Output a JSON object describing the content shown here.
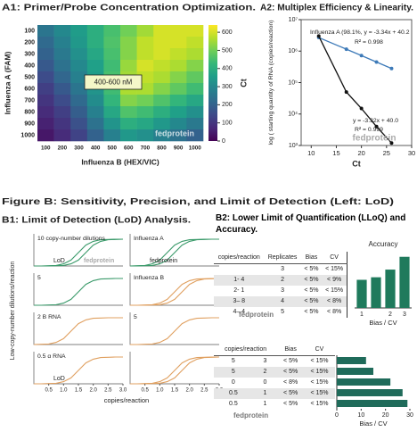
{
  "chart_data": [
    {
      "type": "heatmap",
      "title": "A1: Primer/Probe Concentration Optimization.",
      "x_label": "Influenza B (HEX/VIC)",
      "y_label": "Influenza A (FAM)",
      "categories": [
        "100",
        "200",
        "300",
        "400",
        "500",
        "600",
        "700",
        "800",
        "900",
        "1000"
      ],
      "y_categories": [
        "100",
        "200",
        "300",
        "400",
        "500",
        "600",
        "700",
        "800",
        "900",
        "1000"
      ],
      "values": [
        [
          250,
          300,
          350,
          400,
          450,
          500,
          550,
          600,
          600,
          600
        ],
        [
          220,
          280,
          340,
          400,
          460,
          520,
          580,
          600,
          600,
          580
        ],
        [
          200,
          260,
          320,
          380,
          450,
          520,
          580,
          600,
          580,
          560
        ],
        [
          180,
          240,
          300,
          360,
          440,
          540,
          600,
          580,
          560,
          520
        ],
        [
          150,
          210,
          280,
          350,
          450,
          550,
          580,
          560,
          520,
          480
        ],
        [
          120,
          180,
          250,
          330,
          440,
          560,
          560,
          520,
          480,
          440
        ],
        [
          100,
          150,
          220,
          310,
          420,
          520,
          500,
          460,
          420,
          380
        ],
        [
          80,
          120,
          190,
          280,
          380,
          460,
          440,
          400,
          360,
          320
        ],
        [
          60,
          100,
          160,
          240,
          330,
          400,
          380,
          340,
          300,
          260
        ],
        [
          40,
          80,
          130,
          200,
          280,
          340,
          320,
          280,
          240,
          200
        ]
      ],
      "colormap": "viridis",
      "colorbar_label": "Ct",
      "clim": [
        0,
        640
      ],
      "cticks": [
        0,
        100,
        200,
        300,
        400,
        500,
        600
      ],
      "annotation": "400-600 nM",
      "watermark": "fedprotein"
    },
    {
      "type": "line",
      "title": "A2: Multiplex Efficiency & Linearity.",
      "x_label": "Ct",
      "y_label": "log ( starting quantity of RNA (copies/reaction)",
      "log_y": true,
      "xlim": [
        8,
        30
      ],
      "xticks": [
        10,
        15,
        20,
        25,
        30
      ],
      "ylim": [
        1000,
        10000000
      ],
      "yticks": [
        {
          "value": 1000,
          "label": "10³"
        },
        {
          "value": 10000,
          "label": "10⁴"
        },
        {
          "value": 100000,
          "label": "10⁵"
        },
        {
          "value": 1000000,
          "label": "10⁶"
        },
        {
          "value": 10000000,
          "label": "10⁷"
        }
      ],
      "series": [
        {
          "color": "#3d7ab8",
          "x": [
            11.5,
            17,
            20,
            23,
            26
          ],
          "values": [
            2700000,
            1150000,
            720000,
            450000,
            280000
          ]
        },
        {
          "color": "#111111",
          "x": [
            11.5,
            17,
            20,
            23,
            26
          ],
          "values": [
            3000000,
            50000,
            15000,
            4000,
            1200
          ]
        }
      ],
      "annotations": [
        "Influenza A (98.1%, y = -3.34x + 40.2",
        "R² = 0.998",
        "y = -3.32x + 40.0",
        "R² = 0.999"
      ],
      "watermark": "fedprotein"
    },
    {
      "type": "multiples",
      "title": "B1: Limit of Detection (LoD) Analysis.",
      "x_label": "copies/reaction",
      "y_label": "Low-copy-number dilutions/reaction",
      "xlim": [
        0,
        3
      ],
      "ylim": [
        0,
        1.2
      ],
      "xticks": [
        0.5,
        {
          "value": 1,
          "label": "1.0"
        },
        1.5,
        {
          "value": 2,
          "label": "2.0"
        },
        2.5,
        {
          "value": 3,
          "label": "3.0"
        }
      ],
      "x": [
        0,
        0.25,
        0.5,
        0.75,
        1,
        1.25,
        1.5,
        1.75,
        2,
        2.25,
        2.5,
        2.75,
        3
      ],
      "panels": [
        {
          "label": "10 copy-number dilutions",
          "color": "#3a9a6a",
          "annotations": [
            "LoD",
            "fedprotein"
          ],
          "series": [
            {
              "values": [
                0,
                0,
                0.01,
                0.02,
                0.08,
                0.22,
                0.5,
                0.78,
                0.92,
                0.98,
                0.99,
                1,
                1
              ]
            },
            {
              "values": [
                0,
                0,
                0,
                0.01,
                0.02,
                0.08,
                0.22,
                0.5,
                0.78,
                0.92,
                0.98,
                0.99,
                1
              ]
            }
          ]
        },
        {
          "label": "Influenza A",
          "color": "#3a9a6a",
          "annotations": [
            "fedprotein"
          ],
          "series": [
            {
              "values": [
                0,
                0.01,
                0.02,
                0.08,
                0.22,
                0.5,
                0.78,
                0.92,
                0.98,
                0.99,
                1,
                1,
                1
              ]
            },
            {
              "values": [
                0,
                0,
                0.01,
                0.02,
                0.08,
                0.22,
                0.5,
                0.78,
                0.92,
                0.98,
                0.99,
                1,
                1
              ]
            }
          ]
        },
        {
          "label": "5",
          "color": "#3a9a6a",
          "series": [
            {
              "values": [
                0,
                0,
                0.01,
                0.02,
                0.08,
                0.22,
                0.5,
                0.78,
                0.92,
                0.98,
                0.99,
                1,
                1
              ]
            }
          ]
        },
        {
          "label": "Influenza B",
          "color": "#e0a060",
          "series": [
            {
              "values": [
                0,
                0,
                0.01,
                0.02,
                0.08,
                0.22,
                0.5,
                0.78,
                0.92,
                0.98,
                0.99,
                1,
                1
              ]
            },
            {
              "values": [
                0,
                0,
                0,
                0.01,
                0.02,
                0.08,
                0.22,
                0.5,
                0.78,
                0.92,
                0.98,
                0.99,
                1
              ]
            }
          ]
        },
        {
          "label": "2 B RNA",
          "color": "#e0a060",
          "series": [
            {
              "values": [
                0,
                0.01,
                0.02,
                0.08,
                0.22,
                0.5,
                0.78,
                0.92,
                0.98,
                0.99,
                1,
                1,
                1
              ]
            }
          ]
        },
        {
          "label": "5",
          "color": "#e0a060",
          "series": [
            {
              "values": [
                0,
                0,
                0.01,
                0.02,
                0.08,
                0.22,
                0.5,
                0.78,
                0.92,
                0.98,
                0.99,
                1,
                1
              ]
            }
          ]
        },
        {
          "label": "0.5 α RNA",
          "color": "#e0a060",
          "annotations": [
            "LoD"
          ],
          "series": [
            {
              "values": [
                0,
                0,
                0.01,
                0.02,
                0.08,
                0.22,
                0.5,
                0.78,
                0.92,
                0.98,
                0.99,
                1,
                1
              ]
            }
          ]
        },
        {
          "color": "#e0a060",
          "series": [
            {
              "values": [
                0,
                0,
                0.01,
                0.02,
                0.08,
                0.22,
                0.5,
                0.78,
                0.92,
                0.98,
                0.99,
                1,
                1
              ]
            },
            {
              "values": [
                0,
                0,
                0,
                0.01,
                0.02,
                0.08,
                0.22,
                0.5,
                0.78,
                0.92,
                0.98,
                0.99,
                1
              ]
            }
          ]
        }
      ]
    },
    {
      "type": "bar",
      "title": "Accuracy",
      "x_label": "Bias / CV",
      "categories": [
        "1",
        null,
        "2",
        "3"
      ],
      "values": [
        55,
        60,
        75,
        100
      ],
      "ylim": [
        0,
        110
      ],
      "color": "#1f7a5c"
    },
    {
      "type": "hbar",
      "x_label": "Bias / CV",
      "values": [
        12,
        15,
        22,
        27,
        29
      ],
      "xlim": [
        0,
        30
      ],
      "xticks": [
        0,
        10,
        20,
        30
      ],
      "color": "#1f6b5a"
    }
  ],
  "figure_b_title": "Figure B: Sensitivity, Precision, and Limit of Detection (Left: LoD)",
  "b2_title": "B2: Lower Limit of Quantification (LLoQ) and Accuracy.",
  "tables": [
    {
      "header": [
        "copies/reaction",
        "Replicates",
        "Bias",
        "CV"
      ],
      "rows": [
        [
          null,
          "3",
          "< 5%",
          "< 15%"
        ],
        [
          "1- 4",
          "2",
          "< 5%",
          "< 9%"
        ],
        [
          "2- 1",
          "3",
          "< 5%",
          "< 15%"
        ],
        [
          "3– 8",
          "4",
          "< 5%",
          "< 8%"
        ],
        [
          "4– 4",
          "5",
          "< 5%",
          "< 8%"
        ]
      ],
      "watermark": "fedprotein"
    },
    {
      "header": [
        "copies/reaction",
        "Bias",
        "CV"
      ],
      "rows": [
        [
          "5",
          "3",
          "< 5%",
          "< 15%"
        ],
        [
          "5",
          "2",
          "< 5%",
          "< 15%"
        ],
        [
          "0",
          "0",
          "< 8%",
          "< 15%"
        ],
        [
          "0.5",
          "1",
          "< 5%",
          "< 15%"
        ],
        [
          "0.5",
          "1",
          "< 5%",
          "< 15%"
        ]
      ],
      "watermark": "fedprotein"
    }
  ]
}
